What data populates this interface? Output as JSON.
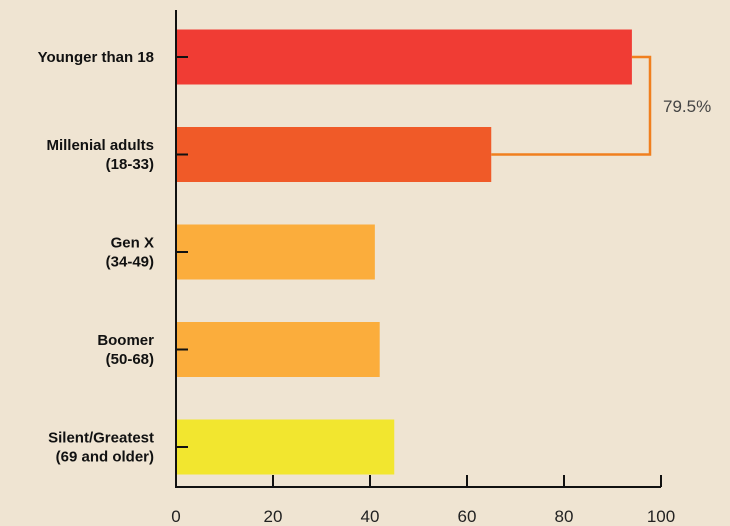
{
  "chart_data": {
    "type": "bar",
    "orientation": "horizontal",
    "categories": [
      [
        "Younger than 18"
      ],
      [
        "Millenial adults",
        "(18-33)"
      ],
      [
        "Gen X",
        "(34-49)"
      ],
      [
        "Boomer",
        "(50-68)"
      ],
      [
        "Silent/Greatest",
        "(69 and older)"
      ]
    ],
    "values": [
      94,
      65,
      41,
      42,
      45
    ],
    "bar_colors": [
      "#f03c34",
      "#f05a28",
      "#fbad3c",
      "#fbad3c",
      "#f2e62f"
    ],
    "xlim": [
      0,
      100
    ],
    "xticks": [
      "0",
      "20",
      "40",
      "60",
      "80",
      "100"
    ],
    "grid": false,
    "title": "",
    "xlabel": "",
    "ylabel": "",
    "annotation": {
      "text": "79.5%",
      "between": [
        0,
        1
      ],
      "color": "#f07f1e"
    }
  }
}
